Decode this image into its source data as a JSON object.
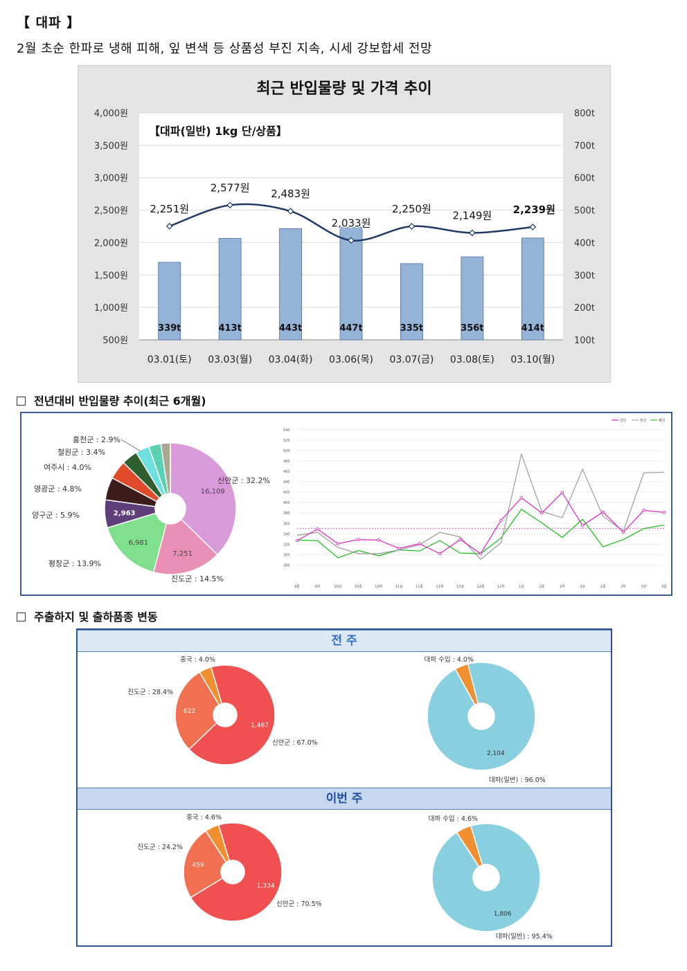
{
  "header": {
    "title": "【 대파 】",
    "subtitle": "2월 초순 한파로 냉해 피해, 잎 변색 등 상품성 부진 지속, 시세 강보합세 전망"
  },
  "sections": {
    "yoy_title": "전년대비 반입물량 추이(최근 6개월)",
    "origin_title": "주출하지 및 출하품종 변동"
  },
  "chart_data": [
    {
      "type": "bar",
      "title": "최근 반입물량 및 가격 추이",
      "subtitle": "【대파(일반) 1kg 단/상품】",
      "categories": [
        "03.01(토)",
        "03.03(월)",
        "03.04(화)",
        "03.06(목)",
        "03.07(금)",
        "03.08(토)",
        "03.10(월)"
      ],
      "series": [
        {
          "kind": "bar",
          "axis": "right",
          "values": [
            339,
            413,
            443,
            447,
            335,
            356,
            414
          ],
          "labels": [
            "339t",
            "413t",
            "443t",
            "447t",
            "335t",
            "356t",
            "414t"
          ]
        },
        {
          "kind": "line",
          "axis": "left",
          "values": [
            2251,
            2577,
            2483,
            2033,
            2250,
            2149,
            2239
          ],
          "labels": [
            "2,251원",
            "2,577원",
            "2,483원",
            "2,033원",
            "2,250원",
            "2,149원",
            "2,239원"
          ]
        }
      ],
      "ylim_left": [
        500,
        4000
      ],
      "ylim_right": [
        100,
        800
      ],
      "left_ticks": [
        "4,000원",
        "3,500원",
        "3,000원",
        "2,500원",
        "2,000원",
        "1,500원",
        "1,000원",
        "500원"
      ],
      "right_ticks": [
        "800t",
        "700t",
        "600t",
        "500t",
        "400t",
        "300t",
        "200t",
        "100t"
      ],
      "colors": {
        "bar": "#95b3d7",
        "line": "#1f3864"
      }
    },
    {
      "type": "pie",
      "slices": [
        {
          "label": "신안군 : 32.2%",
          "value": 16109,
          "value_label": "16,109",
          "color": "#d99ad9"
        },
        {
          "label": "진도군 : 14.5%",
          "value": 7251,
          "value_label": "7,251",
          "color": "#e98fb3"
        },
        {
          "label": "평창군 : 13.9%",
          "value": 6981,
          "value_label": "6,981",
          "color": "#7ee08c"
        },
        {
          "label": "양구군 : 5.9%",
          "value": 2963,
          "value_label": "2,963",
          "color": "#5e3f7a"
        },
        {
          "label": "영광군 : 4.8%",
          "value": 2400,
          "value_label": "",
          "color": "#3d1c1c"
        },
        {
          "label": "여주시 : 4.0%",
          "value": 2000,
          "value_label": "",
          "color": "#e04b2c"
        },
        {
          "label": "철원군 : 3.4%",
          "value": 1700,
          "value_label": "",
          "color": "#2e5e2e"
        },
        {
          "label": "홍천군 : 2.9%",
          "value": 1450,
          "value_label": "",
          "color": "#6ee0e0"
        },
        {
          "label": "",
          "value": 1300,
          "value_label": "",
          "color": "#5ad1b0"
        },
        {
          "label": "",
          "value": 1000,
          "value_label": "",
          "color": "#a8a890"
        }
      ]
    },
    {
      "type": "line",
      "legend": [
        "금년",
        "전년",
        "평년"
      ],
      "x": [
        "9중",
        "9하",
        "10상",
        "10중",
        "10하",
        "11상",
        "11중",
        "11하",
        "12상",
        "12중",
        "12하",
        "1상",
        "1중",
        "1하",
        "2상",
        "2중",
        "2하",
        "3상",
        "3중"
      ],
      "yticks": [
        "540",
        "520",
        "500",
        "480",
        "460",
        "440",
        "420",
        "400",
        "380",
        "360",
        "340",
        "320",
        "300",
        "280"
      ],
      "ylim": [
        270,
        545
      ],
      "series": [
        {
          "name": "금년",
          "color": "#e020c0",
          "values": [
            327,
            349,
            321,
            329,
            328,
            312,
            321,
            302,
            329,
            302,
            366,
            409,
            380,
            419,
            356,
            382,
            343,
            385,
            381
          ]
        },
        {
          "name": "전년",
          "color": "#a0a0a0",
          "values": [
            337,
            343,
            314,
            302,
            302,
            309,
            319,
            343,
            334,
            291,
            323,
            493,
            383,
            371,
            464,
            374,
            345,
            457,
            458
          ]
        },
        {
          "name": "평년",
          "color": "#20c020",
          "values": [
            328,
            327,
            294,
            308,
            298,
            309,
            307,
            327,
            303,
            302,
            332,
            387,
            361,
            333,
            368,
            315,
            329,
            350,
            357
          ]
        }
      ],
      "reference_value": 350
    },
    {
      "type": "pie",
      "panel": "전 주",
      "group": "origin",
      "slices": [
        {
          "label": "신안군 : 67.0%",
          "value": 1467,
          "value_label": "1,467",
          "color": "#f05050"
        },
        {
          "label": "진도군 : 28.4%",
          "value": 622,
          "value_label": "622",
          "color": "#f07050"
        },
        {
          "label": "중국 : 4.0%",
          "value": 88,
          "value_label": "",
          "color": "#f09030"
        }
      ]
    },
    {
      "type": "pie",
      "panel": "전 주",
      "group": "variety",
      "slices": [
        {
          "label": "대파(일반) : 96.0%",
          "value": 2104,
          "value_label": "2,104",
          "color": "#88d0e0"
        },
        {
          "label": "대파 수입 : 4.0%",
          "value": 88,
          "value_label": "",
          "color": "#f09030"
        }
      ]
    },
    {
      "type": "pie",
      "panel": "이번 주",
      "group": "origin",
      "slices": [
        {
          "label": "신안군 : 70.5%",
          "value": 1334,
          "value_label": "1,334",
          "color": "#f05050"
        },
        {
          "label": "진도군 : 24.2%",
          "value": 459,
          "value_label": "459",
          "color": "#f07050"
        },
        {
          "label": "중국 : 4.6%",
          "value": 87,
          "value_label": "",
          "color": "#f09030"
        }
      ]
    },
    {
      "type": "pie",
      "panel": "이번 주",
      "group": "variety",
      "slices": [
        {
          "label": "대파(일반) : 95.4%",
          "value": 1806,
          "value_label": "1,806",
          "color": "#88d0e0"
        },
        {
          "label": "대파 수입 : 4.6%",
          "value": 87,
          "value_label": "",
          "color": "#f09030"
        }
      ]
    }
  ],
  "panels": {
    "prev_week": "전 주",
    "this_week": "이번 주"
  }
}
